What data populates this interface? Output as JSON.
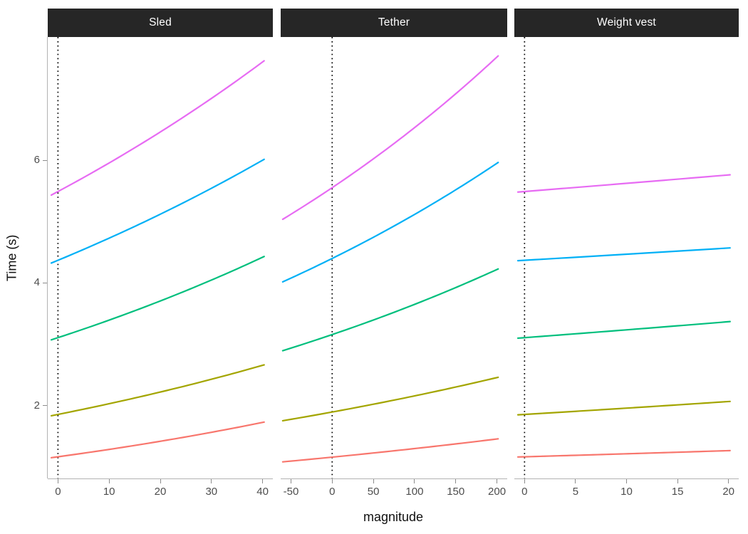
{
  "figure": {
    "background": "#ffffff",
    "strip_background": "#262626",
    "strip_text_color": "#ffffff",
    "axis_line_color": "#b3b3b3",
    "tick_mark_color": "#8c8c8c",
    "tick_label_color": "#4d4d4d",
    "title_color": "#111111"
  },
  "chart_data": {
    "type": "line",
    "faceted": true,
    "ylabel": "Time (s)",
    "xlabel": "magnitude",
    "y_ticks": [
      2,
      4,
      6
    ],
    "y_domain": [
      0.82,
      8.0
    ],
    "grid": "off",
    "legend": "none",
    "reference_line": {
      "x": 0,
      "style": "dotted",
      "color": "#000000"
    },
    "line_width": 2.2,
    "panels": [
      {
        "label": "Sled",
        "x_ticks": [
          0,
          10,
          20,
          30,
          40
        ],
        "x_domain": [
          -2,
          42
        ],
        "x_range": [
          -1.3,
          40.3
        ],
        "series": [
          {
            "name": "line-red",
            "color": "#F8766D",
            "anchors": [
              [
                0,
                1.17
              ],
              [
                40,
                1.73
              ]
            ]
          },
          {
            "name": "line-olive",
            "color": "#A3A500",
            "anchors": [
              [
                0,
                1.86
              ],
              [
                40,
                2.66
              ]
            ]
          },
          {
            "name": "line-green",
            "color": "#00BF7D",
            "anchors": [
              [
                0,
                3.11
              ],
              [
                40,
                4.42
              ]
            ]
          },
          {
            "name": "line-blue",
            "color": "#00B0F6",
            "anchors": [
              [
                0,
                4.37
              ],
              [
                40,
                6.0
              ]
            ]
          },
          {
            "name": "line-magenta",
            "color": "#E76BF3",
            "anchors": [
              [
                0,
                5.49
              ],
              [
                40,
                7.6
              ]
            ]
          }
        ]
      },
      {
        "label": "Tether",
        "x_ticks": [
          -50,
          0,
          50,
          100,
          150,
          200
        ],
        "x_domain": [
          -62.5,
          212.5
        ],
        "x_range": [
          -60,
          201.5
        ],
        "series": [
          {
            "name": "line-red",
            "color": "#F8766D",
            "anchors": [
              [
                -50,
                1.1
              ],
              [
                200,
                1.46
              ]
            ]
          },
          {
            "name": "line-olive",
            "color": "#A3A500",
            "anchors": [
              [
                -50,
                1.78
              ],
              [
                200,
                2.46
              ]
            ]
          },
          {
            "name": "line-green",
            "color": "#00BF7D",
            "anchors": [
              [
                -50,
                2.94
              ],
              [
                200,
                4.22
              ]
            ]
          },
          {
            "name": "line-blue",
            "color": "#00B0F6",
            "anchors": [
              [
                -50,
                4.08
              ],
              [
                200,
                5.95
              ]
            ]
          },
          {
            "name": "line-magenta",
            "color": "#E76BF3",
            "anchors": [
              [
                -50,
                5.12
              ],
              [
                200,
                7.68
              ]
            ]
          }
        ]
      },
      {
        "label": "Weight vest",
        "x_ticks": [
          0,
          5,
          10,
          15,
          20
        ],
        "x_domain": [
          -1,
          21
        ],
        "x_range": [
          -0.65,
          20.15
        ],
        "series": [
          {
            "name": "line-red",
            "color": "#F8766D",
            "anchors": [
              [
                0,
                1.17
              ],
              [
                20,
                1.27
              ]
            ]
          },
          {
            "name": "line-olive",
            "color": "#A3A500",
            "anchors": [
              [
                0,
                1.86
              ],
              [
                20,
                2.07
              ]
            ]
          },
          {
            "name": "line-green",
            "color": "#00BF7D",
            "anchors": [
              [
                0,
                3.11
              ],
              [
                20,
                3.37
              ]
            ]
          },
          {
            "name": "line-blue",
            "color": "#00B0F6",
            "anchors": [
              [
                0,
                4.37
              ],
              [
                20,
                4.57
              ]
            ]
          },
          {
            "name": "line-magenta",
            "color": "#E76BF3",
            "anchors": [
              [
                0,
                5.49
              ],
              [
                20,
                5.76
              ]
            ]
          }
        ]
      }
    ]
  }
}
